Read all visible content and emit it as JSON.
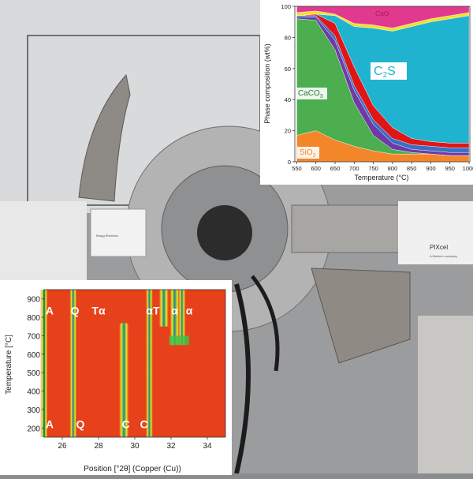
{
  "photo": {
    "device_label": "PIXcel",
    "device_sublabel": "A Malvern company",
    "module_label": "Bragg Brentano"
  },
  "chart_data": [
    {
      "type": "area",
      "xlabel": "Temperature (°C)",
      "ylabel": "Phase composition (wt%)",
      "xlim": [
        545,
        1002
      ],
      "ylim": [
        0,
        100
      ],
      "xticks": [
        "550",
        "600",
        "650",
        "700",
        "750",
        "800",
        "850",
        "900",
        "950",
        "1000"
      ],
      "yticks": [
        "0",
        "20",
        "40",
        "60",
        "80",
        "100"
      ],
      "x": [
        550,
        600,
        650,
        700,
        750,
        800,
        850,
        900,
        950,
        1000
      ],
      "series": [
        {
          "label_parts": [
            "SiO",
            "2"
          ],
          "color": "#f4862a",
          "values": [
            17,
            20,
            14,
            10,
            7,
            5,
            5,
            5,
            4,
            4
          ]
        },
        {
          "label_parts": [
            "CaCO",
            "3"
          ],
          "color": "#4cae4f",
          "values": [
            75,
            71,
            58,
            28,
            10,
            3,
            1,
            0,
            0,
            0
          ]
        },
        {
          "color": "#6e3aa6",
          "values": [
            1,
            2,
            6,
            8,
            7,
            4,
            2,
            2,
            2,
            2
          ]
        },
        {
          "color": "#3a6fc4",
          "values": [
            1,
            1,
            3,
            3,
            3,
            3,
            3,
            3,
            3,
            3
          ]
        },
        {
          "color": "#e01616",
          "values": [
            0,
            1,
            8,
            12,
            9,
            7,
            4,
            3,
            3,
            3
          ]
        },
        {
          "label_parts": [
            "C",
            "2",
            "S"
          ],
          "color": "#1fb3cf",
          "values": [
            0,
            0,
            5,
            26,
            50,
            62,
            72,
            77,
            80,
            82
          ]
        },
        {
          "color": "#f0e02a",
          "values": [
            2,
            2,
            1,
            2,
            2,
            2,
            2,
            2,
            2,
            2
          ]
        },
        {
          "label_parts": [
            "CaO"
          ],
          "color": "#e0398e",
          "values": [
            4,
            3,
            5,
            11,
            12,
            14,
            11,
            8,
            6,
            4
          ]
        }
      ]
    },
    {
      "type": "heatmap",
      "xlabel": "Position [°2θ] (Copper (Cu))",
      "ylabel": "Temperature [°C]",
      "xlim": [
        25,
        35
      ],
      "ylim": [
        150,
        950
      ],
      "xticks": [
        "26",
        "28",
        "30",
        "32",
        "34"
      ],
      "yticks": [
        "200",
        "300",
        "400",
        "500",
        "600",
        "700",
        "800",
        "900"
      ],
      "peaks": [
        {
          "pos": 25.0,
          "tmin": 150,
          "tmax": 950
        },
        {
          "pos": 26.6,
          "tmin": 150,
          "tmax": 950
        },
        {
          "pos": 29.4,
          "tmin": 150,
          "tmax": 770
        },
        {
          "pos": 30.8,
          "tmin": 150,
          "tmax": 950
        },
        {
          "pos": 31.6,
          "tmin": 750,
          "tmax": 950
        },
        {
          "pos": 32.2,
          "tmin": 650,
          "tmax": 950
        },
        {
          "pos": 32.6,
          "tmin": 650,
          "tmax": 950
        }
      ],
      "annotations_top": [
        "A",
        "Q",
        "Tα",
        "αT",
        "α",
        "α"
      ],
      "annotations_bottom": [
        "A",
        "Q",
        "C",
        "C"
      ]
    }
  ]
}
